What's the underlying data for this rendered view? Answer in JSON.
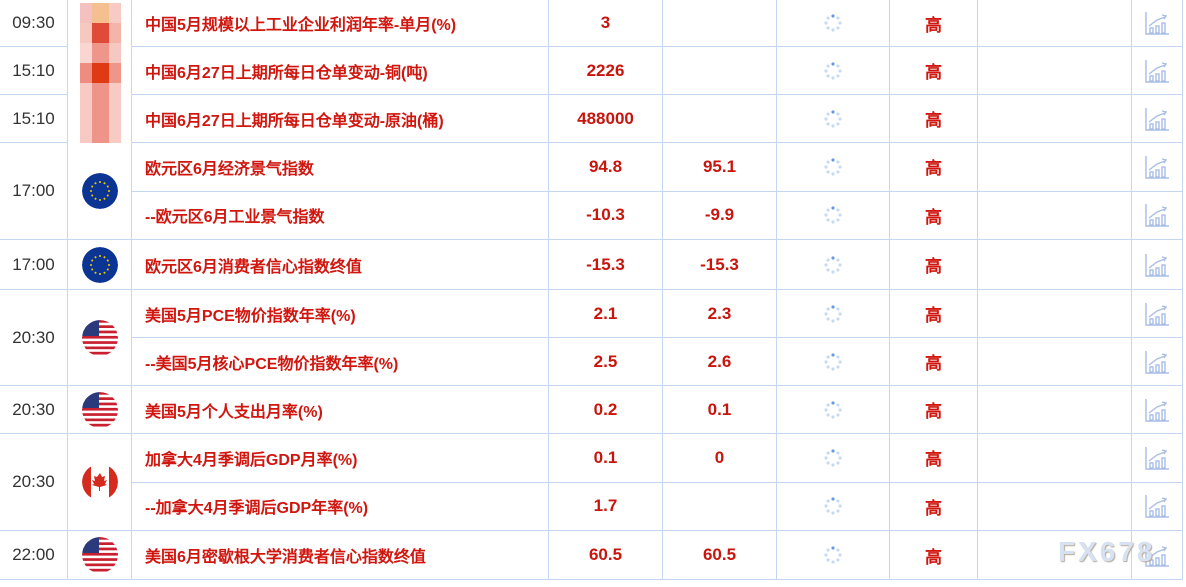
{
  "colors": {
    "event": "#d0160e",
    "grid": "#c4d6f2"
  },
  "groups": [
    {
      "time": "09:30",
      "flag": "china-flag-pixelated",
      "rows": [
        {
          "event": "中国5月规模以上工业企业利润年率-单月(%)",
          "actual": "3",
          "previous": "",
          "importance": "高"
        }
      ]
    },
    {
      "time": "15:10",
      "flag": "china-flag-pixelated",
      "rows": [
        {
          "event": "中国6月27日上期所每日仓单变动-铜(吨)",
          "actual": "2226",
          "previous": "",
          "importance": "高"
        }
      ]
    },
    {
      "time": "15:10",
      "flag": "china-flag-pixelated",
      "rows": [
        {
          "event": "中国6月27日上期所每日仓单变动-原油(桶)",
          "actual": "488000",
          "previous": "",
          "importance": "高"
        }
      ]
    },
    {
      "time": "17:00",
      "flag": "eu",
      "rows": [
        {
          "event": "欧元区6月经济景气指数",
          "actual": "94.8",
          "previous": "95.1",
          "importance": "高"
        },
        {
          "event": "--欧元区6月工业景气指数",
          "actual": "-10.3",
          "previous": "-9.9",
          "importance": "高"
        }
      ]
    },
    {
      "time": "17:00",
      "flag": "eu",
      "rows": [
        {
          "event": "欧元区6月消费者信心指数终值",
          "actual": "-15.3",
          "previous": "-15.3",
          "importance": "高"
        }
      ]
    },
    {
      "time": "20:30",
      "flag": "us",
      "rows": [
        {
          "event": "美国5月PCE物价指数年率(%)",
          "actual": "2.1",
          "previous": "2.3",
          "importance": "高"
        },
        {
          "event": "--美国5月核心PCE物价指数年率(%)",
          "actual": "2.5",
          "previous": "2.6",
          "importance": "高"
        }
      ]
    },
    {
      "time": "20:30",
      "flag": "us",
      "rows": [
        {
          "event": "美国5月个人支出月率(%)",
          "actual": "0.2",
          "previous": "0.1",
          "importance": "高"
        }
      ]
    },
    {
      "time": "20:30",
      "flag": "ca",
      "rows": [
        {
          "event": "加拿大4月季调后GDP月率(%)",
          "actual": "0.1",
          "previous": "0",
          "importance": "高"
        },
        {
          "event": "--加拿大4月季调后GDP年率(%)",
          "actual": "1.7",
          "previous": "",
          "importance": "高"
        }
      ]
    },
    {
      "time": "22:00",
      "flag": "us",
      "rows": [
        {
          "event": "美国6月密歇根大学消费者信心指数终值",
          "actual": "60.5",
          "previous": "60.5",
          "importance": "高"
        }
      ]
    }
  ],
  "watermark": "FX678"
}
